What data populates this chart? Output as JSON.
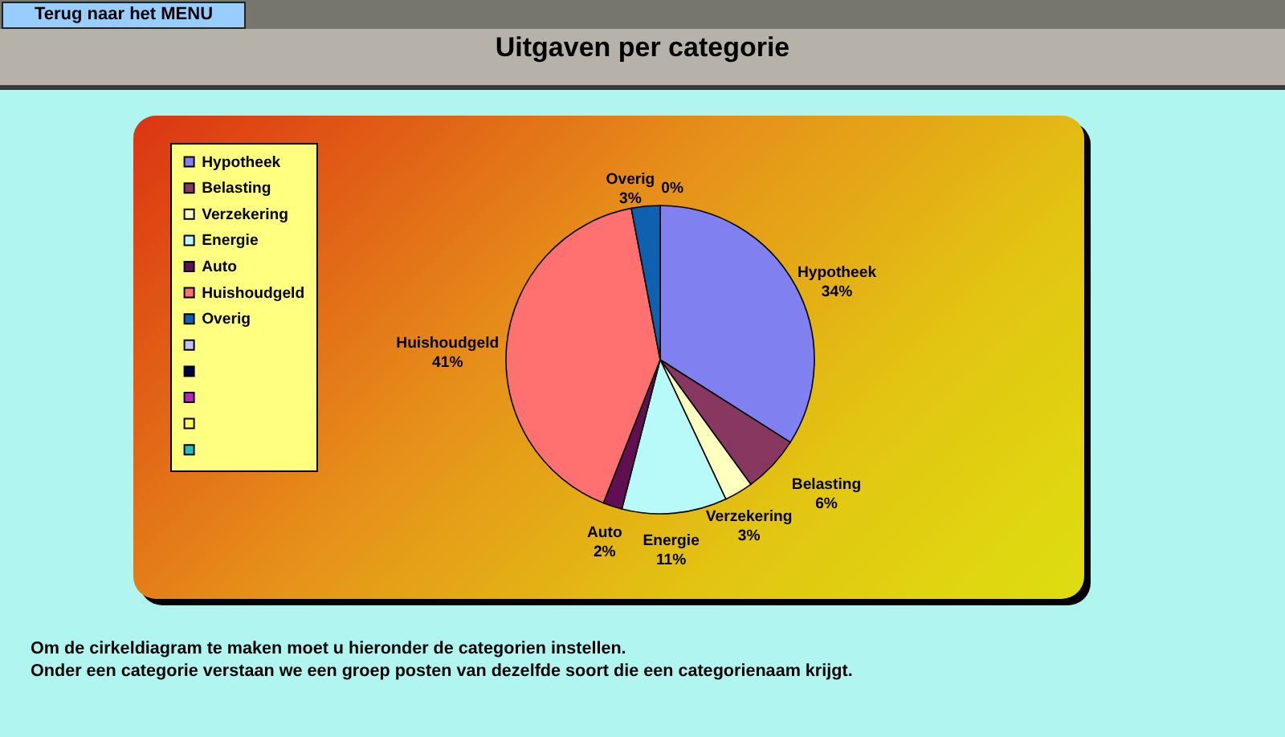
{
  "chart_data": {
    "type": "pie",
    "title": "Uitgaven per categorie",
    "categories": [
      "Hypotheek",
      "Belasting",
      "Verzekering",
      "Energie",
      "Auto",
      "Huishoudgeld",
      "Overig",
      null,
      null,
      null,
      null,
      null
    ],
    "values": [
      34,
      6,
      3,
      11,
      2,
      41,
      3,
      0,
      null,
      null,
      null,
      null
    ],
    "value_labels": [
      "34%",
      "6%",
      "3%",
      "11%",
      "2%",
      "41%",
      "3%",
      "0%",
      null,
      null,
      null,
      null
    ],
    "colors": [
      "#8080f0",
      "#883860",
      "#ffffc0",
      "#b8fafa",
      "#601050",
      "#ff7070",
      "#1060b0",
      "#c0c0ff",
      "#000040",
      "#c020c0",
      "#ffff60",
      "#20c0c0"
    ],
    "legend": "left",
    "annotations": [
      "Terug naar het MENU",
      "Om de cirkeldiagram te maken moet u hieronder de categorien instellen.",
      "Onder een categorie verstaan we een groep posten van dezelfde soort die een categorienaam krijgt."
    ]
  }
}
